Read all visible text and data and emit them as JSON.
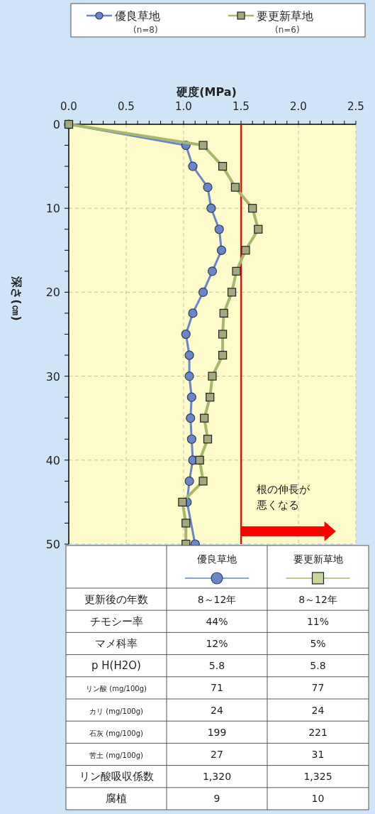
{
  "chart_data": [
    {
      "type": "line",
      "xlabel": "硬度(MPa)",
      "ylabel": "深さ(㎝)",
      "xlim": [
        0,
        2.5
      ],
      "ylim": [
        50,
        0
      ],
      "xticks": [
        {
          "value": 0,
          "label": "0.0"
        },
        {
          "value": 0.1,
          "label": null
        },
        {
          "value": 0.2,
          "label": null
        },
        {
          "value": 0.3,
          "label": null
        },
        {
          "value": 0.4,
          "label": null
        },
        {
          "value": 0.5,
          "label": "0.5"
        },
        {
          "value": 0.6,
          "label": null
        },
        {
          "value": 0.7,
          "label": null
        },
        {
          "value": 0.8,
          "label": null
        },
        {
          "value": 0.9,
          "label": null
        },
        {
          "value": 1,
          "label": "1.0"
        },
        {
          "value": 1.1,
          "label": null
        },
        {
          "value": 1.2,
          "label": null
        },
        {
          "value": 1.3,
          "label": null
        },
        {
          "value": 1.4,
          "label": null
        },
        {
          "value": 1.5,
          "label": "1.5"
        },
        {
          "value": 1.6,
          "label": null
        },
        {
          "value": 1.7,
          "label": null
        },
        {
          "value": 1.8,
          "label": null
        },
        {
          "value": 1.9,
          "label": null
        },
        {
          "value": 2,
          "label": "2.0"
        },
        {
          "value": 2.1,
          "label": null
        },
        {
          "value": 2.2,
          "label": null
        },
        {
          "value": 2.3,
          "label": null
        },
        {
          "value": 2.4,
          "label": null
        },
        {
          "value": 2.5,
          "label": "2.5"
        }
      ],
      "yticks": [
        0,
        {
          "value": 2.5,
          "label": null
        },
        {
          "value": 5,
          "label": null
        },
        {
          "value": 7.5,
          "label": null
        },
        10,
        {
          "value": 12.5,
          "label": null
        },
        {
          "value": 15,
          "label": null
        },
        {
          "value": 17.5,
          "label": null
        },
        20,
        {
          "value": 22.5,
          "label": null
        },
        {
          "value": 25,
          "label": null
        },
        {
          "value": 27.5,
          "label": null
        },
        30,
        {
          "value": 32.5,
          "label": null
        },
        {
          "value": 35,
          "label": null
        },
        {
          "value": 37.5,
          "label": null
        },
        40,
        {
          "value": 42.5,
          "label": null
        },
        {
          "value": 45,
          "label": null
        },
        {
          "value": 47.5,
          "label": null
        },
        50
      ],
      "grid": true,
      "legend": "top",
      "series": [
        {
          "name": "優良草地\n(n=8)",
          "color": "#6a86c8",
          "marker": "circle",
          "x": [
            0,
            1.02,
            1.08,
            1.21,
            1.24,
            1.31,
            1.33,
            1.25,
            1.17,
            1.08,
            1.02,
            1.05,
            1.05,
            1.07,
            1.06,
            1.07,
            1.08,
            1.05,
            1.03,
            null,
            1.1
          ],
          "values": [
            0,
            2.5,
            5,
            7.5,
            10,
            12.5,
            15,
            17.5,
            20,
            22.5,
            25,
            27.5,
            30,
            32.5,
            35,
            37.5,
            40,
            42.5,
            45,
            null,
            50
          ]
        },
        {
          "name": "要更新草地\n(n=6)",
          "color": "#a8b86a",
          "marker": "square",
          "x": [
            0,
            1.17,
            1.34,
            1.45,
            1.6,
            1.65,
            1.54,
            1.46,
            1.42,
            1.35,
            1.34,
            1.34,
            1.25,
            1.23,
            1.18,
            1.21,
            1.14,
            1.17,
            0.99,
            1.02,
            1.02
          ],
          "values": [
            0,
            2.5,
            5,
            7.5,
            10,
            12.5,
            15,
            17.5,
            20,
            22.5,
            25,
            27.5,
            30,
            32.5,
            35,
            37.5,
            40,
            42.5,
            45,
            47.5,
            50
          ]
        }
      ],
      "ref_lines": [
        {
          "axis": "x",
          "value": 1.5,
          "label": "根の伸長が悪くなる",
          "color": "#ff0000"
        }
      ]
    },
    {
      "type": "other",
      "categories": [
        null,
        "優良草地",
        "要更新草地"
      ],
      "y_categories": [
        "更新後の年数",
        "チモシー率",
        "マメ科率",
        "p H(H2O)",
        "リン酸 (mg/100g)",
        "カリ (mg/100g)",
        "石灰 (mg/100g)",
        "苦土 (mg/100g)",
        "リン酸吸収係数",
        "腐植"
      ],
      "cell_labels": [
        [
          "8～12年",
          "8～12年"
        ],
        [
          "44%",
          "11%"
        ],
        [
          "12%",
          "5%"
        ],
        [
          "5.8",
          "5.8"
        ],
        [
          "71",
          "77"
        ],
        [
          "24",
          "24"
        ],
        [
          "199",
          "221"
        ],
        [
          "27",
          "31"
        ],
        [
          "1,320",
          "1,325"
        ],
        [
          "9",
          "10"
        ]
      ]
    }
  ]
}
